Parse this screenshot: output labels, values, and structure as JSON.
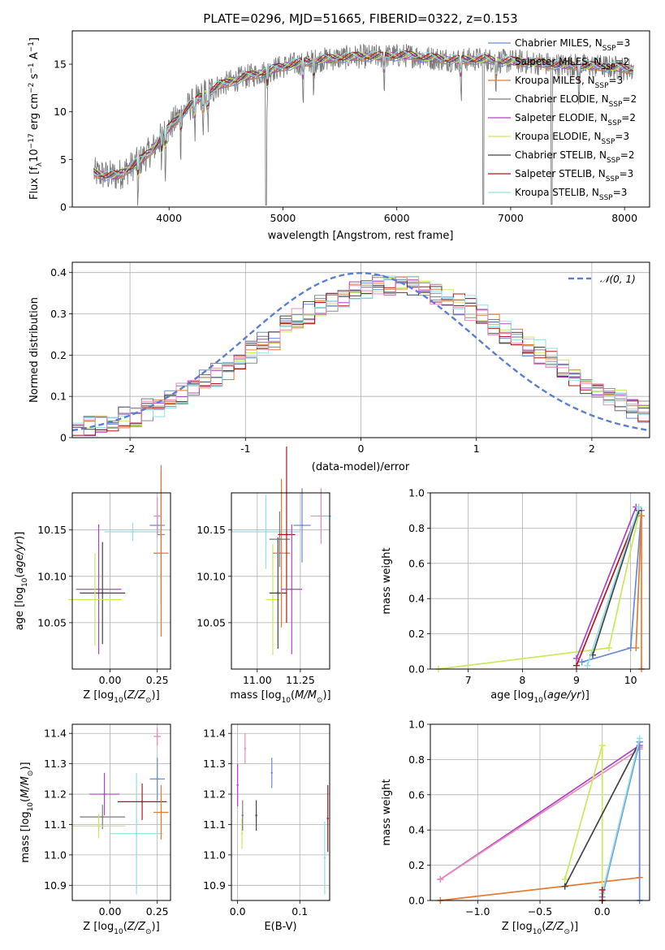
{
  "title": "PLATE=0296, MJD=51665, FIBERID=0322, z=0.153",
  "colors": {
    "chabrier_miles": "#6a8bd6",
    "salpeter_miles": "#8c8c8c",
    "kroupa_miles": "#e57b32",
    "chabrier_elodie": "#7a7a7a",
    "salpeter_elodie": "#b040c8",
    "kroupa_elodie": "#c9ea5a",
    "chabrier_stelib": "#444444",
    "salpeter_stelib": "#b01818",
    "kroupa_stelib": "#8fe0e8",
    "gauss": "#5b7fd0",
    "pink": "#e78bb8"
  },
  "chart_data": [
    {
      "id": "spectrum",
      "type": "line",
      "title": "PLATE=0296, MJD=51665, FIBERID=0322, z=0.153",
      "xlabel": "wavelength [Angstrom, rest frame]",
      "ylabel": "Flux [f_λ 10^-17 erg cm^-2 s^-1 A^-1]",
      "xlim": [
        3150,
        8220
      ],
      "ylim": [
        0,
        18.5
      ],
      "xticks": [
        4000,
        5000,
        6000,
        7000,
        8000
      ],
      "yticks": [
        0,
        5,
        10,
        15
      ],
      "grid": false,
      "legend_position": "top-right",
      "continuum": {
        "x": [
          3330,
          3450,
          3550,
          3650,
          3750,
          3850,
          3950,
          4050,
          4150,
          4250,
          4350,
          4450,
          4550,
          4650,
          4750,
          4850,
          4950,
          5050,
          5150,
          5250,
          5350,
          5450,
          5550,
          5650,
          5750,
          5850,
          5950,
          6050,
          6150,
          6250,
          6350,
          6450,
          6550,
          6650,
          6750,
          6850,
          6950,
          7050,
          7150,
          7250,
          7350,
          7450,
          7550,
          7650,
          7750,
          7850,
          7950,
          8050
        ],
        "y": [
          3.6,
          3.3,
          3.3,
          4.1,
          4.9,
          6.0,
          7.6,
          9.0,
          10.3,
          11.3,
          12.2,
          12.8,
          13.2,
          13.6,
          13.9,
          14.2,
          14.6,
          14.9,
          15.1,
          15.3,
          15.5,
          15.6,
          15.7,
          15.8,
          15.8,
          15.8,
          15.9,
          15.9,
          15.9,
          15.7,
          15.6,
          15.5,
          15.4,
          15.5,
          15.5,
          15.4,
          15.3,
          15.3,
          15.2,
          15.1,
          15.0,
          14.9,
          14.9,
          14.8,
          14.8,
          14.7,
          14.6,
          14.5
        ]
      },
      "legend": [
        "Chabrier MILES, N_SSP=3",
        "Salpeter MILES, N_SSP=2",
        "Kroupa MILES, N_SSP=3",
        "Chabrier ELODIE, N_SSP=2",
        "Salpeter ELODIE, N_SSP=2",
        "Kroupa ELODIE, N_SSP=3",
        "Chabrier STELIB, N_SSP=2",
        "Salpeter STELIB, N_SSP=3",
        "Kroupa STELIB, N_SSP=3"
      ],
      "legend_keys": [
        "chabrier_miles",
        "salpeter_miles",
        "kroupa_miles",
        "chabrier_elodie",
        "salpeter_elodie",
        "kroupa_elodie",
        "chabrier_stelib",
        "salpeter_stelib",
        "kroupa_stelib"
      ]
    },
    {
      "id": "residuals",
      "type": "line",
      "xlabel": "(data-model)/error",
      "ylabel": "Normed distribution",
      "xlim": [
        -2.5,
        2.5
      ],
      "ylim": [
        0,
        0.425
      ],
      "xticks": [
        -2,
        -1,
        0,
        1,
        2
      ],
      "yticks": [
        0.0,
        0.1,
        0.2,
        0.3,
        0.4
      ],
      "grid": true,
      "legend": [
        "𝒩(0, 1)"
      ],
      "legend_position": "top-right",
      "bin_width": 0.1
    },
    {
      "id": "age_vs_Z",
      "type": "scatter",
      "xlabel": "Z [log10(Z/Z☉)]",
      "ylabel": "age  [log10(age/yr)]",
      "xlim": [
        -0.2,
        0.32
      ],
      "ylim": [
        10.0,
        10.19
      ],
      "xticks": [
        0.0,
        0.25
      ],
      "xticklabels": [
        "0.00",
        "0.25"
      ],
      "yticks": [
        10.05,
        10.1,
        10.15
      ],
      "yticklabels": [
        "10.05",
        "10.10",
        "10.15"
      ],
      "grid": true,
      "points": [
        {
          "key": "salpeter_elodie",
          "x": -0.06,
          "y": 10.086,
          "xerr": 0.12,
          "yerr": 0.07
        },
        {
          "key": "chabrier_stelib",
          "x": -0.04,
          "y": 10.082,
          "xerr": 0.12,
          "yerr": 0.055
        },
        {
          "key": "kroupa_elodie",
          "x": -0.08,
          "y": 10.075,
          "xerr": 0.14,
          "yerr": 0.05
        },
        {
          "key": "kroupa_stelib",
          "x": 0.12,
          "y": 10.148,
          "xerr": 0.15,
          "yerr": 0.01
        },
        {
          "key": "salpeter_miles",
          "x": 0.27,
          "y": 10.145,
          "xerr": 0.02,
          "yerr": 0.075
        },
        {
          "key": "chabrier_miles",
          "x": 0.25,
          "y": 10.155,
          "xerr": 0.04,
          "yerr": 0.01
        },
        {
          "key": "kroupa_miles",
          "x": 0.27,
          "y": 10.125,
          "xerr": 0.04,
          "yerr": 0.09
        },
        {
          "key": "pink",
          "x": 0.25,
          "y": 10.165,
          "xerr": 0.02,
          "yerr": 0.02
        }
      ]
    },
    {
      "id": "age_vs_mass",
      "type": "scatter",
      "xlabel": "mass [log10(M/M☉)]",
      "ylabel": "",
      "xlim": [
        10.85,
        11.42
      ],
      "ylim": [
        10.0,
        10.19
      ],
      "xticks": [
        11.0,
        11.25
      ],
      "xticklabels": [
        "11.00",
        "11.25"
      ],
      "yticks": [
        10.05,
        10.1,
        10.15
      ],
      "yticklabels": [
        "10.05",
        "10.10",
        "10.15"
      ],
      "grid": true,
      "points": [
        {
          "key": "kroupa_stelib",
          "x": 11.05,
          "y": 10.148,
          "xerr": 0.2,
          "yerr": 0.04
        },
        {
          "key": "kroupa_elodie",
          "x": 11.09,
          "y": 10.075,
          "xerr": 0.04,
          "yerr": 0.06
        },
        {
          "key": "chabrier_stelib",
          "x": 11.12,
          "y": 10.082,
          "xerr": 0.05,
          "yerr": 0.06
        },
        {
          "key": "kroupa_miles",
          "x": 11.14,
          "y": 10.125,
          "xerr": 0.05,
          "yerr": 0.08
        },
        {
          "key": "chabrier_elodie",
          "x": 11.13,
          "y": 10.14,
          "xerr": 0.06,
          "yerr": 0.03
        },
        {
          "key": "salpeter_stelib",
          "x": 11.17,
          "y": 10.145,
          "xerr": 0.05,
          "yerr": 0.095
        },
        {
          "key": "salpeter_elodie",
          "x": 11.2,
          "y": 10.086,
          "xerr": 0.06,
          "yerr": 0.07
        },
        {
          "key": "chabrier_miles",
          "x": 11.26,
          "y": 10.155,
          "xerr": 0.05,
          "yerr": 0.04
        },
        {
          "key": "pink",
          "x": 11.37,
          "y": 10.165,
          "xerr": 0.06,
          "yerr": 0.03
        }
      ]
    },
    {
      "id": "weight_vs_age",
      "type": "line",
      "xlabel": "age  [log10(age/yr)]",
      "ylabel": "mass weight",
      "xlim": [
        6.3,
        10.35
      ],
      "ylim": [
        0,
        1.0
      ],
      "xticks": [
        7,
        8,
        9,
        10
      ],
      "xticklabels": [
        "7",
        "8",
        "9",
        "10"
      ],
      "yticks": [
        0.0,
        0.2,
        0.4,
        0.6,
        0.8,
        1.0
      ],
      "yticklabels": [
        "0.0",
        "0.2",
        "0.4",
        "0.6",
        "0.8",
        "1.0"
      ],
      "grid": true,
      "series": [
        {
          "key": "kroupa_elodie",
          "x": [
            6.45,
            9.6,
            10.15
          ],
          "y": [
            0.0,
            0.12,
            0.88
          ]
        },
        {
          "key": "chabrier_miles",
          "x": [
            9.1,
            10.0,
            10.2
          ],
          "y": [
            0.04,
            0.12,
            0.9
          ]
        },
        {
          "key": "salpeter_stelib",
          "x": [
            9.0,
            10.15
          ],
          "y": [
            0.02,
            0.9
          ]
        },
        {
          "key": "chabrier_stelib",
          "x": [
            9.3,
            10.15
          ],
          "y": [
            0.08,
            0.9
          ]
        },
        {
          "key": "salpeter_elodie",
          "x": [
            9.0,
            10.1
          ],
          "y": [
            0.06,
            0.92
          ]
        },
        {
          "key": "kroupa_stelib",
          "x": [
            9.2,
            10.15
          ],
          "y": [
            0.02,
            0.92
          ]
        },
        {
          "key": "kroupa_miles",
          "x": [
            10.1,
            10.2
          ],
          "y": [
            0.12,
            0.87
          ]
        },
        {
          "key": "kroupa_miles",
          "x": [
            10.2,
            10.2
          ],
          "y": [
            0.0,
            0.87
          ]
        }
      ]
    },
    {
      "id": "mass_vs_Z",
      "type": "scatter",
      "xlabel": "Z [log10(Z/Z☉)]",
      "ylabel": "mass [log10(M/M☉)]",
      "xlim": [
        -0.2,
        0.32
      ],
      "ylim": [
        10.85,
        11.43
      ],
      "xticks": [
        0.0,
        0.25
      ],
      "xticklabels": [
        "0.00",
        "0.25"
      ],
      "yticks": [
        10.9,
        11.0,
        11.1,
        11.2,
        11.3,
        11.4
      ],
      "yticklabels": [
        "10.9",
        "11.0",
        "11.1",
        "11.2",
        "11.3",
        "11.4"
      ],
      "grid": true,
      "points": [
        {
          "key": "salpeter_elodie",
          "x": -0.03,
          "y": 11.2,
          "xerr": 0.08,
          "yerr": 0.07
        },
        {
          "key": "chabrier_elodie",
          "x": -0.04,
          "y": 11.125,
          "xerr": 0.12,
          "yerr": 0.04
        },
        {
          "key": "kroupa_elodie",
          "x": -0.06,
          "y": 11.095,
          "xerr": 0.14,
          "yerr": 0.04
        },
        {
          "key": "kroupa_stelib",
          "x": 0.14,
          "y": 11.07,
          "xerr": 0.14,
          "yerr": 0.2
        },
        {
          "key": "salpeter_stelib",
          "x": 0.17,
          "y": 11.175,
          "xerr": 0.13,
          "yerr": 0.06
        },
        {
          "key": "kroupa_miles",
          "x": 0.27,
          "y": 11.14,
          "xerr": 0.04,
          "yerr": 0.09
        },
        {
          "key": "chabrier_miles",
          "x": 0.25,
          "y": 11.25,
          "xerr": 0.04,
          "yerr": 0.07
        },
        {
          "key": "pink",
          "x": 0.25,
          "y": 11.39,
          "xerr": 0.02,
          "yerr": 0.03
        }
      ]
    },
    {
      "id": "mass_vs_ebv",
      "type": "scatter",
      "xlabel": "E(B-V)",
      "ylabel": "",
      "xlim": [
        -0.01,
        0.148
      ],
      "ylim": [
        10.85,
        11.43
      ],
      "xticks": [
        0.0,
        0.1
      ],
      "xticklabels": [
        "0.0",
        "0.1"
      ],
      "yticks": [
        10.9,
        11.0,
        11.1,
        11.2,
        11.3,
        11.4
      ],
      "yticklabels": [
        "10.9",
        "11.0",
        "11.1",
        "11.2",
        "11.3",
        "11.4"
      ],
      "grid": true,
      "points": [
        {
          "key": "salpeter_elodie",
          "x": 0.0,
          "y": 11.23,
          "xerr": 0,
          "yerr": 0.07
        },
        {
          "key": "kroupa_elodie",
          "x": 0.007,
          "y": 11.07,
          "xerr": 0,
          "yerr": 0.05
        },
        {
          "key": "chabrier_elodie",
          "x": 0.008,
          "y": 11.13,
          "xerr": 0,
          "yerr": 0.05
        },
        {
          "key": "pink",
          "x": 0.012,
          "y": 11.35,
          "xerr": 0,
          "yerr": 0.05
        },
        {
          "key": "chabrier_stelib",
          "x": 0.03,
          "y": 11.13,
          "xerr": 0,
          "yerr": 0.05
        },
        {
          "key": "chabrier_miles",
          "x": 0.055,
          "y": 11.27,
          "xerr": 0,
          "yerr": 0.05
        },
        {
          "key": "kroupa_stelib",
          "x": 0.14,
          "y": 10.99,
          "xerr": 0,
          "yerr": 0.12
        },
        {
          "key": "salpeter_stelib",
          "x": 0.145,
          "y": 11.12,
          "xerr": 0,
          "yerr": 0.11
        }
      ]
    },
    {
      "id": "weight_vs_Z",
      "type": "line",
      "xlabel": "Z [log10(Z/Z☉)]",
      "ylabel": "mass weight",
      "xlim": [
        -1.38,
        0.38
      ],
      "ylim": [
        0,
        1.0
      ],
      "xticks": [
        -1.0,
        -0.5,
        0.0
      ],
      "xticklabels": [
        "−1.0",
        "−0.5",
        "0.0"
      ],
      "yticks": [
        0.0,
        0.2,
        0.4,
        0.6,
        0.8,
        1.0
      ],
      "yticklabels": [
        "0.0",
        "0.2",
        "0.4",
        "0.6",
        "0.8",
        "1.0"
      ],
      "grid": true,
      "series": [
        {
          "key": "salpeter_elodie",
          "x": [
            -1.3,
            0.3
          ],
          "y": [
            0.12,
            0.88
          ]
        },
        {
          "key": "pink",
          "x": [
            -1.3,
            0.3
          ],
          "y": [
            0.12,
            0.86
          ]
        },
        {
          "key": "kroupa_miles",
          "x": [
            -1.3,
            0.3
          ],
          "y": [
            0.0,
            0.13
          ]
        },
        {
          "key": "kroupa_miles",
          "x": [
            0.3,
            0.3
          ],
          "y": [
            0.13,
            0.87
          ]
        },
        {
          "key": "kroupa_elodie",
          "x": [
            -0.3,
            0.0,
            0.0
          ],
          "y": [
            0.12,
            0.88,
            0.0
          ]
        },
        {
          "key": "chabrier_stelib",
          "x": [
            -0.3,
            0.3
          ],
          "y": [
            0.08,
            0.9
          ]
        },
        {
          "key": "chabrier_miles",
          "x": [
            0.0,
            0.3,
            0.3
          ],
          "y": [
            0.02,
            0.9,
            0.0
          ]
        },
        {
          "key": "kroupa_stelib",
          "x": [
            0.0,
            0.3
          ],
          "y": [
            0.04,
            0.92
          ]
        },
        {
          "key": "salpeter_stelib",
          "x": [
            0.0,
            0.0
          ],
          "y": [
            0.0,
            0.06
          ]
        }
      ]
    }
  ]
}
